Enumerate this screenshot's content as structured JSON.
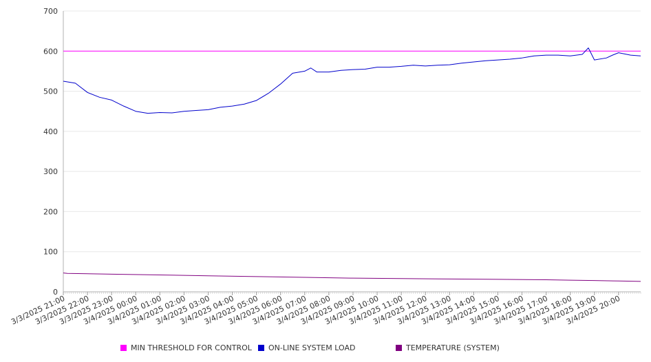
{
  "chart_data": {
    "type": "line",
    "title": "",
    "xlabel": "",
    "ylabel": "",
    "ylim": [
      0,
      700
    ],
    "y_ticks": [
      0,
      100,
      200,
      300,
      400,
      500,
      600,
      700
    ],
    "grid": true,
    "legend_position": "bottom",
    "x_tick_labels": [
      "3/3/2025 21:00",
      "3/3/2025 22:00",
      "3/3/2025 23:00",
      "3/4/2025 00:00",
      "3/4/2025 01:00",
      "3/4/2025 02:00",
      "3/4/2025 03:00",
      "3/4/2025 04:00",
      "3/4/2025 05:00",
      "3/4/2025 06:00",
      "3/4/2025 07:00",
      "3/4/2025 08:00",
      "3/4/2025 09:00",
      "3/4/2025 10:00",
      "3/4/2025 11:00",
      "3/4/2025 12:00",
      "3/4/2025 13:00",
      "3/4/2025 14:00",
      "3/4/2025 15:00",
      "3/4/2025 16:00",
      "3/4/2025 17:00",
      "3/4/2025 18:00",
      "3/4/2025 19:00",
      "3/4/2025 20:00"
    ],
    "x_start": "3/3/2025 21:00",
    "x_end": "3/4/2025 20:55",
    "series": [
      {
        "name": "MIN THRESHOLD FOR CONTROL",
        "color": "#ff00ff",
        "x": [
          "3/3/2025 21:00",
          "3/4/2025 20:55"
        ],
        "values": [
          600,
          600
        ]
      },
      {
        "name": "ON-LINE SYSTEM LOAD",
        "color": "#0000cc",
        "x": [
          "3/3/2025 21:00",
          "3/3/2025 21:30",
          "3/3/2025 22:00",
          "3/3/2025 22:30",
          "3/3/2025 23:00",
          "3/3/2025 23:30",
          "3/4/2025 00:00",
          "3/4/2025 00:30",
          "3/4/2025 01:00",
          "3/4/2025 01:30",
          "3/4/2025 02:00",
          "3/4/2025 02:30",
          "3/4/2025 03:00",
          "3/4/2025 03:30",
          "3/4/2025 04:00",
          "3/4/2025 04:30",
          "3/4/2025 05:00",
          "3/4/2025 05:30",
          "3/4/2025 06:00",
          "3/4/2025 06:30",
          "3/4/2025 07:00",
          "3/4/2025 07:15",
          "3/4/2025 07:30",
          "3/4/2025 08:00",
          "3/4/2025 08:30",
          "3/4/2025 09:00",
          "3/4/2025 09:30",
          "3/4/2025 10:00",
          "3/4/2025 10:30",
          "3/4/2025 11:00",
          "3/4/2025 11:30",
          "3/4/2025 12:00",
          "3/4/2025 12:30",
          "3/4/2025 13:00",
          "3/4/2025 13:30",
          "3/4/2025 14:00",
          "3/4/2025 14:30",
          "3/4/2025 15:00",
          "3/4/2025 15:30",
          "3/4/2025 16:00",
          "3/4/2025 16:30",
          "3/4/2025 17:00",
          "3/4/2025 17:30",
          "3/4/2025 18:00",
          "3/4/2025 18:30",
          "3/4/2025 18:45",
          "3/4/2025 19:00",
          "3/4/2025 19:30",
          "3/4/2025 19:45",
          "3/4/2025 20:00",
          "3/4/2025 20:30",
          "3/4/2025 20:55"
        ],
        "values": [
          525,
          520,
          497,
          485,
          478,
          463,
          450,
          445,
          447,
          446,
          450,
          452,
          454,
          460,
          463,
          468,
          477,
          495,
          518,
          545,
          550,
          558,
          548,
          548,
          552,
          554,
          555,
          560,
          560,
          562,
          565,
          563,
          565,
          566,
          570,
          573,
          576,
          578,
          580,
          583,
          588,
          590,
          590,
          588,
          592,
          608,
          578,
          583,
          590,
          596,
          590,
          588
        ]
      },
      {
        "name": "TEMPERATURE (SYSTEM)",
        "color": "#800080",
        "x": [
          "3/3/2025 21:00",
          "3/3/2025 21:10",
          "3/3/2025 23:00",
          "3/4/2025 01:00",
          "3/4/2025 03:00",
          "3/4/2025 05:00",
          "3/4/2025 07:00",
          "3/4/2025 09:00",
          "3/4/2025 11:00",
          "3/4/2025 13:00",
          "3/4/2025 15:00",
          "3/4/2025 17:00",
          "3/4/2025 18:00",
          "3/4/2025 19:00",
          "3/4/2025 20:00",
          "3/4/2025 20:55"
        ],
        "values": [
          47,
          46,
          44,
          42,
          40,
          38,
          36,
          34,
          33,
          32,
          31,
          30,
          29,
          28,
          27,
          26
        ]
      }
    ]
  },
  "legend": [
    {
      "label": "MIN THRESHOLD FOR CONTROL",
      "color": "#ff00ff"
    },
    {
      "label": "ON-LINE SYSTEM LOAD",
      "color": "#0000cc"
    },
    {
      "label": "TEMPERATURE (SYSTEM)",
      "color": "#800080"
    }
  ]
}
